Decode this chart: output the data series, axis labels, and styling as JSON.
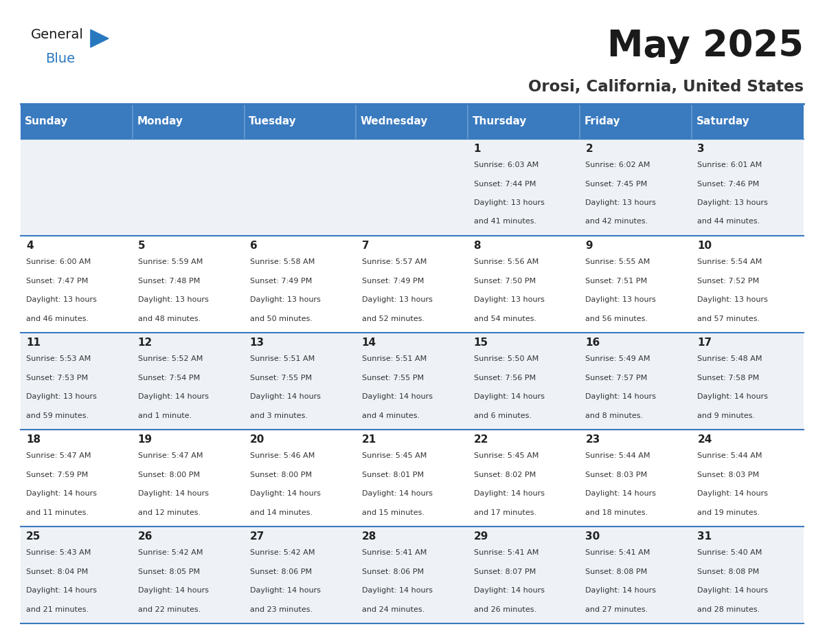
{
  "title": "May 2025",
  "subtitle": "Orosi, California, United States",
  "header_bg": "#3a7abf",
  "header_text": "#ffffff",
  "day_names": [
    "Sunday",
    "Monday",
    "Tuesday",
    "Wednesday",
    "Thursday",
    "Friday",
    "Saturday"
  ],
  "row_bg_odd": "#eef2f7",
  "row_bg_even": "#ffffff",
  "cell_border": "#3a7abf",
  "day_num_color": "#222222",
  "info_color": "#333333",
  "logo_blue": "#2878c0",
  "logo_dark": "#1a1a1a",
  "weeks": [
    [
      {
        "day": "",
        "sunrise": "",
        "sunset": "",
        "daylight": ""
      },
      {
        "day": "",
        "sunrise": "",
        "sunset": "",
        "daylight": ""
      },
      {
        "day": "",
        "sunrise": "",
        "sunset": "",
        "daylight": ""
      },
      {
        "day": "",
        "sunrise": "",
        "sunset": "",
        "daylight": ""
      },
      {
        "day": "1",
        "sunrise": "6:03 AM",
        "sunset": "7:44 PM",
        "daylight": "13 hours and 41 minutes."
      },
      {
        "day": "2",
        "sunrise": "6:02 AM",
        "sunset": "7:45 PM",
        "daylight": "13 hours and 42 minutes."
      },
      {
        "day": "3",
        "sunrise": "6:01 AM",
        "sunset": "7:46 PM",
        "daylight": "13 hours and 44 minutes."
      }
    ],
    [
      {
        "day": "4",
        "sunrise": "6:00 AM",
        "sunset": "7:47 PM",
        "daylight": "13 hours and 46 minutes."
      },
      {
        "day": "5",
        "sunrise": "5:59 AM",
        "sunset": "7:48 PM",
        "daylight": "13 hours and 48 minutes."
      },
      {
        "day": "6",
        "sunrise": "5:58 AM",
        "sunset": "7:49 PM",
        "daylight": "13 hours and 50 minutes."
      },
      {
        "day": "7",
        "sunrise": "5:57 AM",
        "sunset": "7:49 PM",
        "daylight": "13 hours and 52 minutes."
      },
      {
        "day": "8",
        "sunrise": "5:56 AM",
        "sunset": "7:50 PM",
        "daylight": "13 hours and 54 minutes."
      },
      {
        "day": "9",
        "sunrise": "5:55 AM",
        "sunset": "7:51 PM",
        "daylight": "13 hours and 56 minutes."
      },
      {
        "day": "10",
        "sunrise": "5:54 AM",
        "sunset": "7:52 PM",
        "daylight": "13 hours and 57 minutes."
      }
    ],
    [
      {
        "day": "11",
        "sunrise": "5:53 AM",
        "sunset": "7:53 PM",
        "daylight": "13 hours and 59 minutes."
      },
      {
        "day": "12",
        "sunrise": "5:52 AM",
        "sunset": "7:54 PM",
        "daylight": "14 hours and 1 minute."
      },
      {
        "day": "13",
        "sunrise": "5:51 AM",
        "sunset": "7:55 PM",
        "daylight": "14 hours and 3 minutes."
      },
      {
        "day": "14",
        "sunrise": "5:51 AM",
        "sunset": "7:55 PM",
        "daylight": "14 hours and 4 minutes."
      },
      {
        "day": "15",
        "sunrise": "5:50 AM",
        "sunset": "7:56 PM",
        "daylight": "14 hours and 6 minutes."
      },
      {
        "day": "16",
        "sunrise": "5:49 AM",
        "sunset": "7:57 PM",
        "daylight": "14 hours and 8 minutes."
      },
      {
        "day": "17",
        "sunrise": "5:48 AM",
        "sunset": "7:58 PM",
        "daylight": "14 hours and 9 minutes."
      }
    ],
    [
      {
        "day": "18",
        "sunrise": "5:47 AM",
        "sunset": "7:59 PM",
        "daylight": "14 hours and 11 minutes."
      },
      {
        "day": "19",
        "sunrise": "5:47 AM",
        "sunset": "8:00 PM",
        "daylight": "14 hours and 12 minutes."
      },
      {
        "day": "20",
        "sunrise": "5:46 AM",
        "sunset": "8:00 PM",
        "daylight": "14 hours and 14 minutes."
      },
      {
        "day": "21",
        "sunrise": "5:45 AM",
        "sunset": "8:01 PM",
        "daylight": "14 hours and 15 minutes."
      },
      {
        "day": "22",
        "sunrise": "5:45 AM",
        "sunset": "8:02 PM",
        "daylight": "14 hours and 17 minutes."
      },
      {
        "day": "23",
        "sunrise": "5:44 AM",
        "sunset": "8:03 PM",
        "daylight": "14 hours and 18 minutes."
      },
      {
        "day": "24",
        "sunrise": "5:44 AM",
        "sunset": "8:03 PM",
        "daylight": "14 hours and 19 minutes."
      }
    ],
    [
      {
        "day": "25",
        "sunrise": "5:43 AM",
        "sunset": "8:04 PM",
        "daylight": "14 hours and 21 minutes."
      },
      {
        "day": "26",
        "sunrise": "5:42 AM",
        "sunset": "8:05 PM",
        "daylight": "14 hours and 22 minutes."
      },
      {
        "day": "27",
        "sunrise": "5:42 AM",
        "sunset": "8:06 PM",
        "daylight": "14 hours and 23 minutes."
      },
      {
        "day": "28",
        "sunrise": "5:41 AM",
        "sunset": "8:06 PM",
        "daylight": "14 hours and 24 minutes."
      },
      {
        "day": "29",
        "sunrise": "5:41 AM",
        "sunset": "8:07 PM",
        "daylight": "14 hours and 26 minutes."
      },
      {
        "day": "30",
        "sunrise": "5:41 AM",
        "sunset": "8:08 PM",
        "daylight": "14 hours and 27 minutes."
      },
      {
        "day": "31",
        "sunrise": "5:40 AM",
        "sunset": "8:08 PM",
        "daylight": "14 hours and 28 minutes."
      }
    ]
  ],
  "fig_width": 11.88,
  "fig_height": 9.18,
  "dpi": 100
}
